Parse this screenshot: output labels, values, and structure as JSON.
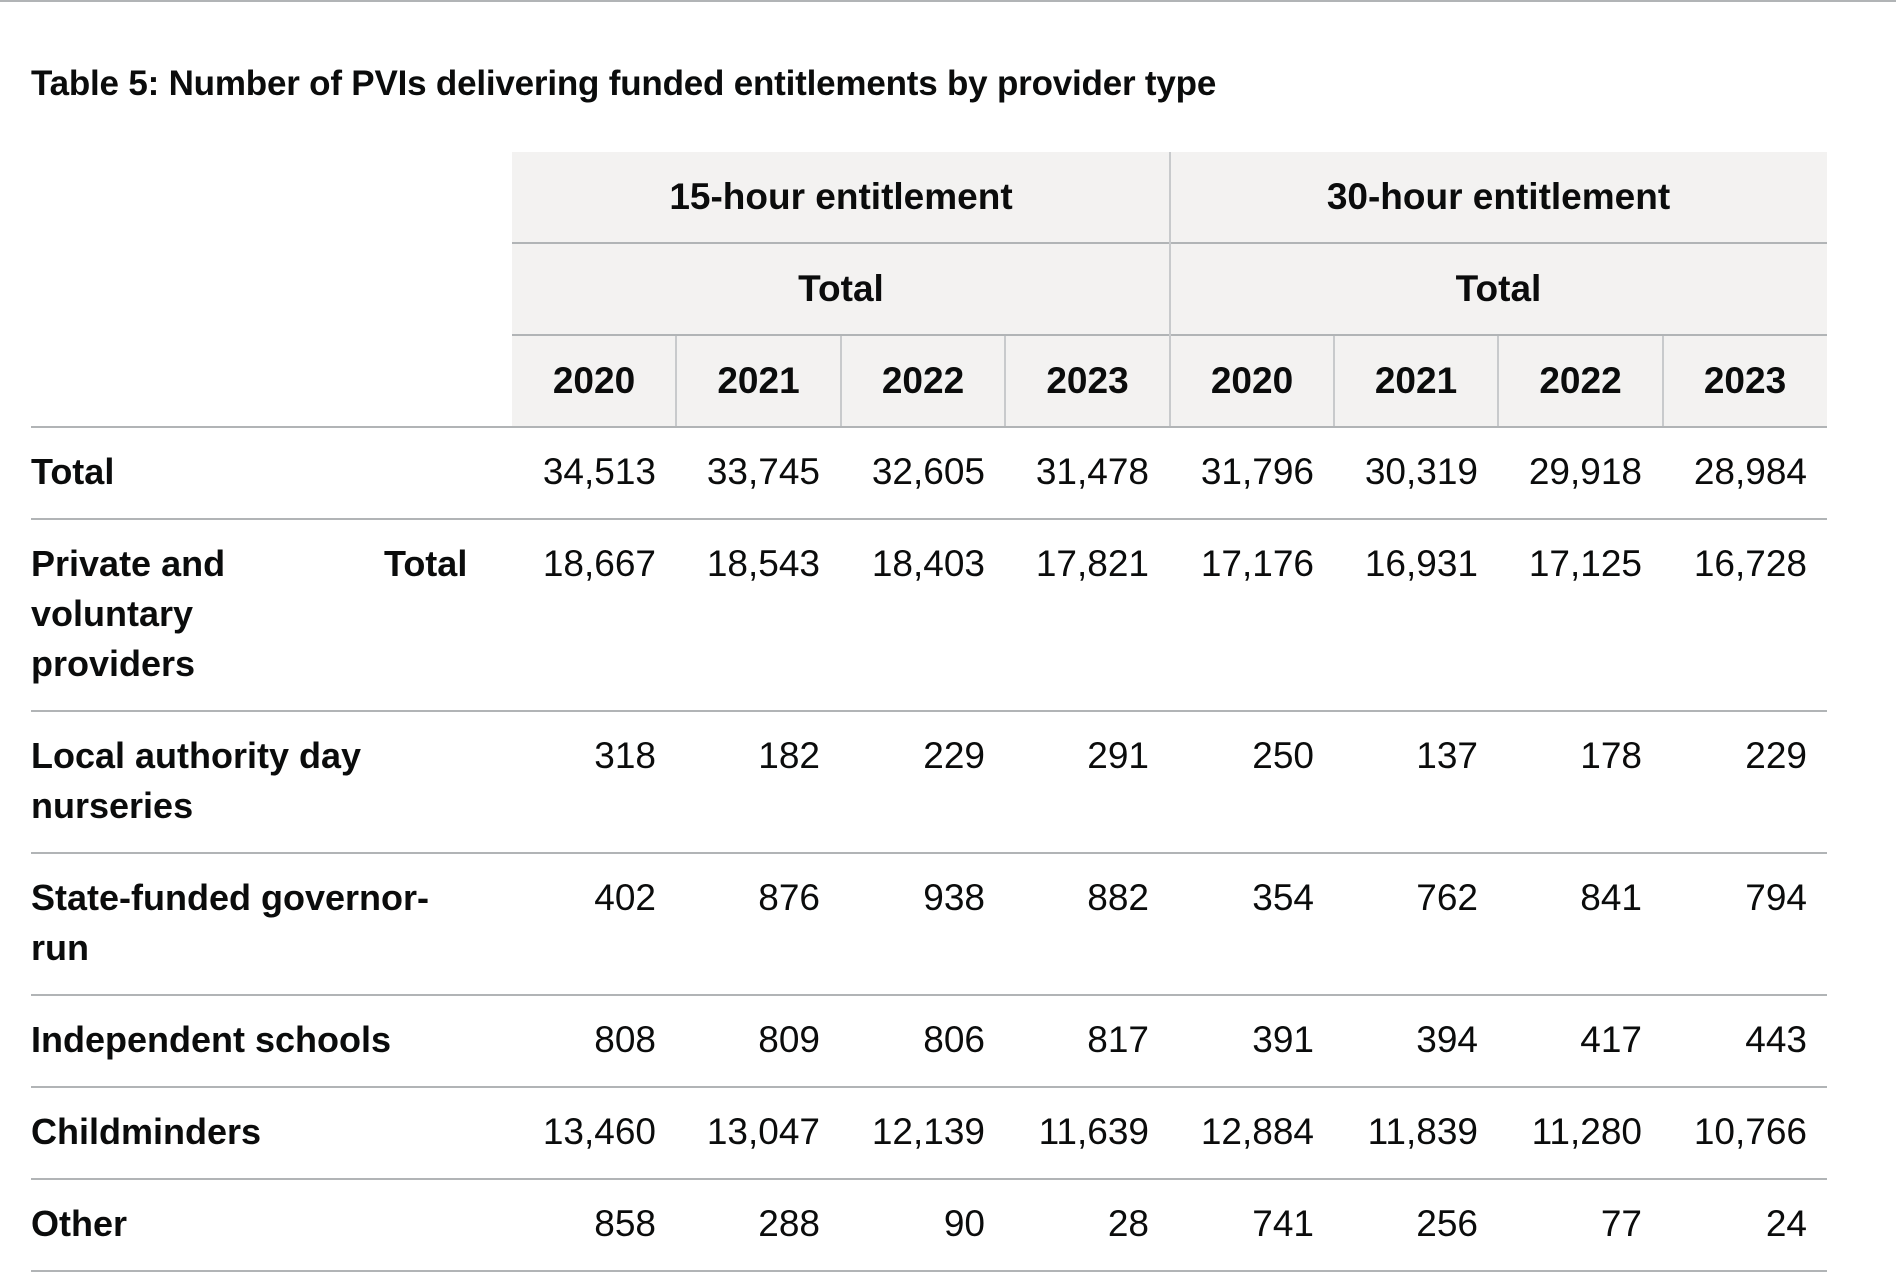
{
  "caption": "Table 5: Number of PVIs delivering funded entitlements by provider type",
  "header": {
    "groups": [
      "15-hour entitlement",
      "30-hour entitlement"
    ],
    "subgroups": [
      "Total",
      "Total"
    ],
    "years": [
      "2020",
      "2021",
      "2022",
      "2023",
      "2020",
      "2021",
      "2022",
      "2023"
    ]
  },
  "rows": [
    {
      "label": "Total",
      "sublabel": "",
      "values": [
        "34,513",
        "33,745",
        "32,605",
        "31,478",
        "31,796",
        "30,319",
        "29,918",
        "28,984"
      ]
    },
    {
      "label": "Private and voluntary providers",
      "sublabel": "Total",
      "values": [
        "18,667",
        "18,543",
        "18,403",
        "17,821",
        "17,176",
        "16,931",
        "17,125",
        "16,728"
      ]
    },
    {
      "label": "Local authority day nurseries",
      "sublabel": "",
      "values": [
        "318",
        "182",
        "229",
        "291",
        "250",
        "137",
        "178",
        "229"
      ]
    },
    {
      "label": "State-funded governor-run",
      "sublabel": "",
      "values": [
        "402",
        "876",
        "938",
        "882",
        "354",
        "762",
        "841",
        "794"
      ]
    },
    {
      "label": "Independent schools",
      "sublabel": "",
      "values": [
        "808",
        "809",
        "806",
        "817",
        "391",
        "394",
        "417",
        "443"
      ]
    },
    {
      "label": "Childminders",
      "sublabel": "",
      "values": [
        "13,460",
        "13,047",
        "12,139",
        "11,639",
        "12,884",
        "11,839",
        "11,280",
        "10,766"
      ]
    },
    {
      "label": "Other",
      "sublabel": "",
      "values": [
        "858",
        "288",
        "90",
        "28",
        "741",
        "256",
        "77",
        "24"
      ]
    }
  ]
}
